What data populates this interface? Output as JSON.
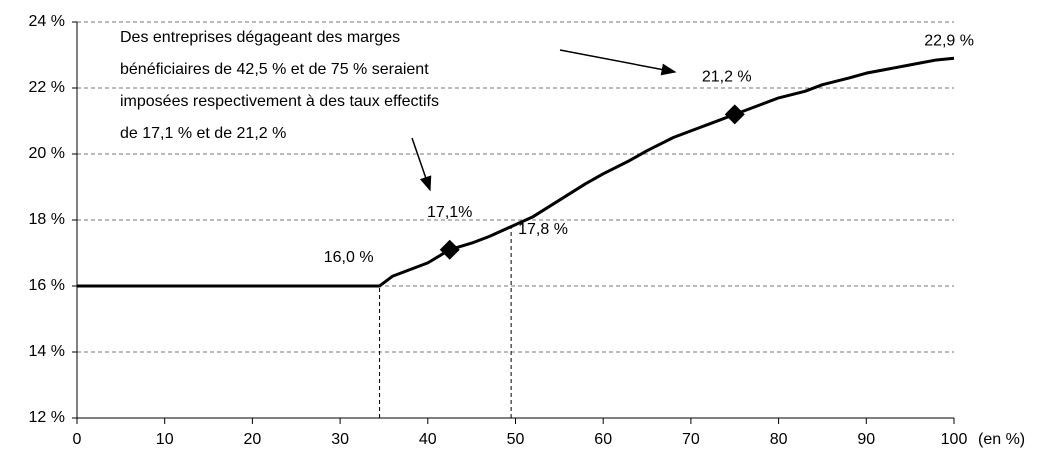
{
  "chart_data": {
    "type": "line",
    "x": [
      0,
      34.5,
      36,
      38,
      40,
      42.5,
      45,
      47,
      49.5,
      52,
      55,
      58,
      60,
      63,
      65,
      68,
      70,
      72,
      75,
      78,
      80,
      83,
      85,
      88,
      90,
      93,
      95,
      98,
      100
    ],
    "series": [
      {
        "color": "#000000",
        "values": [
          16,
          16,
          16.3,
          16.5,
          16.7,
          17.1,
          17.3,
          17.5,
          17.8,
          18.1,
          18.6,
          19.1,
          19.4,
          19.8,
          20.1,
          20.5,
          20.7,
          20.9,
          21.2,
          21.5,
          21.7,
          21.9,
          22.1,
          22.3,
          22.45,
          22.6,
          22.7,
          22.85,
          22.9
        ],
        "value_labels": [
          null,
          null,
          null,
          null,
          null,
          null,
          null,
          null,
          null,
          null,
          null,
          null,
          null,
          null,
          null,
          null,
          null,
          null,
          null,
          null,
          null,
          null,
          null,
          null,
          null,
          null,
          null,
          null,
          "22,9 %"
        ]
      }
    ],
    "markers": {
      "x": [
        42.5,
        75
      ],
      "values": [
        17.1,
        21.2
      ],
      "value_labels": [
        "17,1%",
        "21,2 %"
      ]
    },
    "droplines": {
      "x": [
        34.5,
        49.5
      ],
      "values": [
        16,
        17.8
      ],
      "value_labels": [
        "16,0 %",
        "17,8 %"
      ]
    },
    "annotation": [
      "Des entreprises dégageant des marges",
      "bénéficiaires de 42,5 % et de 75 % seraient",
      "imposées respectivement à des taux effectifs",
      "de 17,1 % et de 21,2 %"
    ],
    "x_label": "(en %)",
    "xlim": [
      0,
      100
    ],
    "xticks": [
      0,
      10,
      20,
      30,
      40,
      50,
      60,
      70,
      80,
      90,
      100
    ],
    "ylim": [
      12,
      24
    ],
    "yticks": [
      {
        "value": 12,
        "label": "12 %"
      },
      {
        "value": 14,
        "label": "14 %"
      },
      {
        "value": 16,
        "label": "16 %"
      },
      {
        "value": 18,
        "label": "18 %"
      },
      {
        "value": 20,
        "label": "20 %"
      },
      {
        "value": 22,
        "label": "22 %"
      },
      {
        "value": 24,
        "label": "24 %"
      }
    ],
    "grid": true
  }
}
